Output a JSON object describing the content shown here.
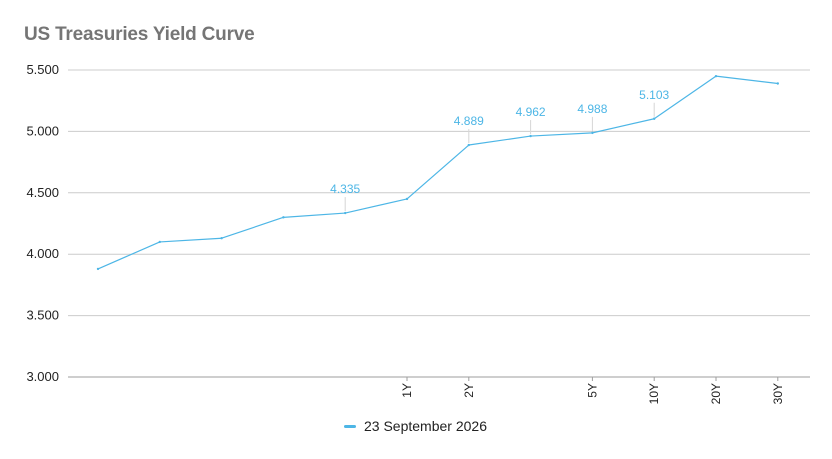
{
  "chart_data": {
    "type": "line",
    "title": "US Treasuries Yield Curve",
    "xlabel": "",
    "ylabel": "",
    "ylim": [
      3.0,
      5.5
    ],
    "yticks": [
      "3.000",
      "3.500",
      "4.000",
      "4.500",
      "5.000",
      "5.500"
    ],
    "grid": true,
    "legend_position": "bottom",
    "series_color": "#4db6e6",
    "categories": [
      "",
      "",
      "",
      "",
      "",
      "1Y",
      "2Y",
      "",
      "5Y",
      "10Y",
      "20Y",
      "30Y"
    ],
    "series": [
      {
        "name": "23 September 2026",
        "values": [
          3.88,
          4.1,
          4.13,
          4.3,
          4.335,
          4.45,
          4.889,
          4.962,
          4.988,
          5.103,
          5.45,
          5.39
        ],
        "data_labels": [
          "",
          "",
          "",
          "",
          "4.335",
          "",
          "4.889",
          "4.962",
          "4.988",
          "5.103",
          "",
          ""
        ]
      }
    ]
  }
}
